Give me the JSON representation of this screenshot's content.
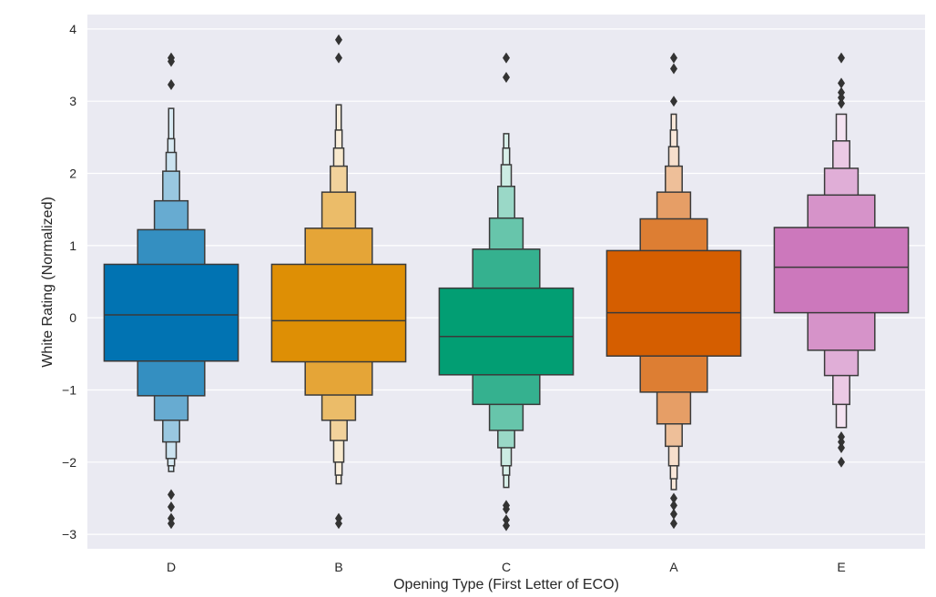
{
  "chart_data": {
    "type": "boxen",
    "title": "",
    "xlabel": "Opening Type (First Letter of ECO)",
    "ylabel": "White Rating (Normalized)",
    "ylim": [
      -3.2,
      4.2
    ],
    "yticks": [
      -3,
      -2,
      -1,
      0,
      1,
      2,
      3,
      4
    ],
    "ytick_labels": [
      "−3",
      "−2",
      "−1",
      "0",
      "1",
      "2",
      "3",
      "4"
    ],
    "grid": true,
    "background": "#EAEAF2",
    "categories": [
      "D",
      "B",
      "C",
      "A",
      "E"
    ],
    "series": [
      {
        "category": "D",
        "color": "#0173B2",
        "median": 0.04,
        "boxes": [
          [
            -0.6,
            0.74
          ],
          [
            -1.08,
            1.22
          ],
          [
            -1.42,
            1.62
          ],
          [
            -1.72,
            2.03
          ],
          [
            -1.95,
            2.29
          ],
          [
            -2.05,
            2.48
          ],
          [
            -2.13,
            2.9
          ]
        ],
        "outliers": [
          3.6,
          3.55,
          3.23,
          -2.45,
          -2.62,
          -2.78,
          -2.85
        ]
      },
      {
        "category": "B",
        "color": "#DE8F05",
        "median": -0.04,
        "boxes": [
          [
            -0.61,
            0.74
          ],
          [
            -1.07,
            1.24
          ],
          [
            -1.42,
            1.74
          ],
          [
            -1.7,
            2.1
          ],
          [
            -2.0,
            2.35
          ],
          [
            -2.18,
            2.6
          ],
          [
            -2.3,
            2.95
          ]
        ],
        "outliers": [
          3.85,
          3.6,
          -2.78,
          -2.85
        ]
      },
      {
        "category": "C",
        "color": "#029E73",
        "median": -0.26,
        "boxes": [
          [
            -0.79,
            0.41
          ],
          [
            -1.2,
            0.95
          ],
          [
            -1.56,
            1.38
          ],
          [
            -1.8,
            1.82
          ],
          [
            -2.05,
            2.12
          ],
          [
            -2.18,
            2.35
          ],
          [
            -2.35,
            2.55
          ]
        ],
        "outliers": [
          3.6,
          3.33,
          -2.6,
          -2.65,
          -2.8,
          -2.88
        ]
      },
      {
        "category": "A",
        "color": "#D55E00",
        "median": 0.07,
        "boxes": [
          [
            -0.53,
            0.93
          ],
          [
            -1.03,
            1.37
          ],
          [
            -1.47,
            1.74
          ],
          [
            -1.78,
            2.1
          ],
          [
            -2.05,
            2.37
          ],
          [
            -2.23,
            2.6
          ],
          [
            -2.38,
            2.82
          ]
        ],
        "outliers": [
          3.6,
          3.45,
          3.0,
          -2.5,
          -2.6,
          -2.72,
          -2.85
        ]
      },
      {
        "category": "E",
        "color": "#CC78BC",
        "median": 0.7,
        "boxes": [
          [
            0.07,
            1.25
          ],
          [
            -0.45,
            1.7
          ],
          [
            -0.8,
            2.07
          ],
          [
            -1.2,
            2.45
          ],
          [
            -1.52,
            2.82
          ]
        ],
        "outliers": [
          3.6,
          3.25,
          3.12,
          3.05,
          2.97,
          -1.65,
          -1.72,
          -1.8,
          -2.0
        ]
      }
    ]
  }
}
